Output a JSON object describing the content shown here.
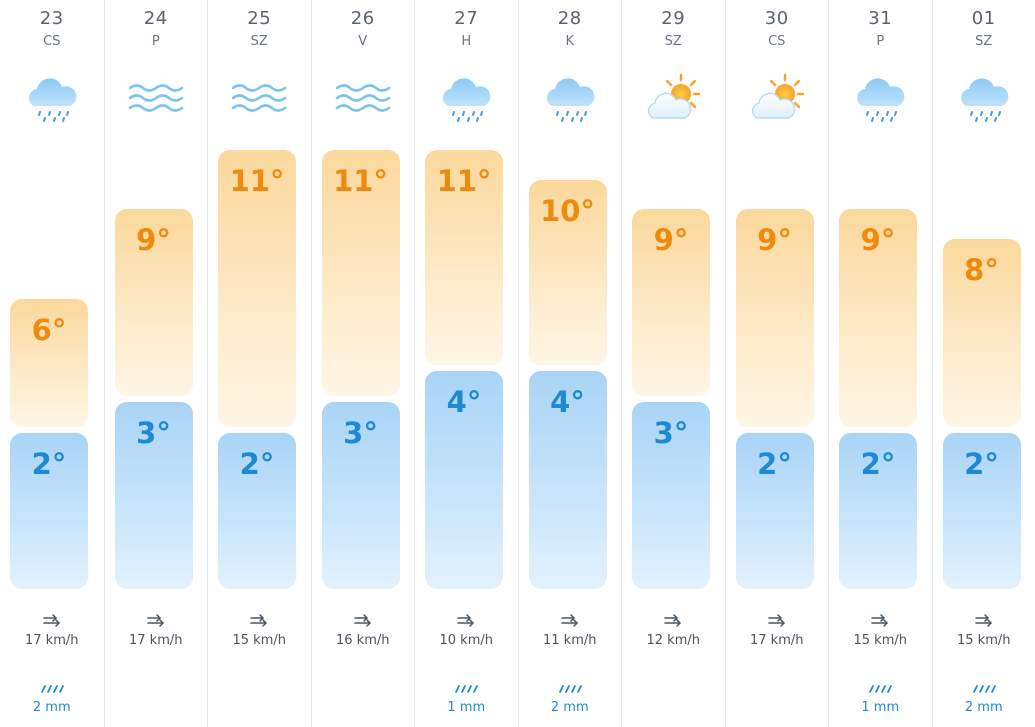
{
  "forecast": {
    "days": [
      {
        "date": "23",
        "weekday": "CS",
        "icon": "rain-cloud-icon",
        "high": "6°",
        "high_value": 6,
        "low": "2°",
        "low_value": 2,
        "wind": "17 km/h",
        "precip": "2 mm"
      },
      {
        "date": "24",
        "weekday": "P",
        "icon": "wind-icon",
        "high": "9°",
        "high_value": 9,
        "low": "3°",
        "low_value": 3,
        "wind": "17 km/h",
        "precip": null
      },
      {
        "date": "25",
        "weekday": "SZ",
        "icon": "wind-icon",
        "high": "11°",
        "high_value": 11,
        "low": "2°",
        "low_value": 2,
        "wind": "15 km/h",
        "precip": null
      },
      {
        "date": "26",
        "weekday": "V",
        "icon": "wind-icon",
        "high": "11°",
        "high_value": 11,
        "low": "3°",
        "low_value": 3,
        "wind": "16 km/h",
        "precip": null
      },
      {
        "date": "27",
        "weekday": "H",
        "icon": "rain-cloud-icon",
        "high": "11°",
        "high_value": 11,
        "low": "4°",
        "low_value": 4,
        "wind": "10 km/h",
        "precip": "1 mm"
      },
      {
        "date": "28",
        "weekday": "K",
        "icon": "rain-cloud-icon",
        "high": "10°",
        "high_value": 10,
        "low": "4°",
        "low_value": 4,
        "wind": "11 km/h",
        "precip": "2 mm"
      },
      {
        "date": "29",
        "weekday": "SZ",
        "icon": "sun-cloud-icon",
        "high": "9°",
        "high_value": 9,
        "low": "3°",
        "low_value": 3,
        "wind": "12 km/h",
        "precip": null
      },
      {
        "date": "30",
        "weekday": "CS",
        "icon": "sun-cloud-icon",
        "high": "9°",
        "high_value": 9,
        "low": "2°",
        "low_value": 2,
        "wind": "17 km/h",
        "precip": null
      },
      {
        "date": "31",
        "weekday": "P",
        "icon": "rain-cloud-icon",
        "high": "9°",
        "high_value": 9,
        "low": "2°",
        "low_value": 2,
        "wind": "15 km/h",
        "precip": "1 mm"
      },
      {
        "date": "01",
        "weekday": "SZ",
        "icon": "rain-cloud-icon",
        "high": "8°",
        "high_value": 8,
        "low": "2°",
        "low_value": 2,
        "wind": "15 km/h",
        "precip": "2 mm"
      }
    ]
  },
  "colors": {
    "high_temp": "#f08a0e",
    "low_temp": "#1e8ad6",
    "precip": "#1e8ad6",
    "separator": "#e3e7ec"
  }
}
